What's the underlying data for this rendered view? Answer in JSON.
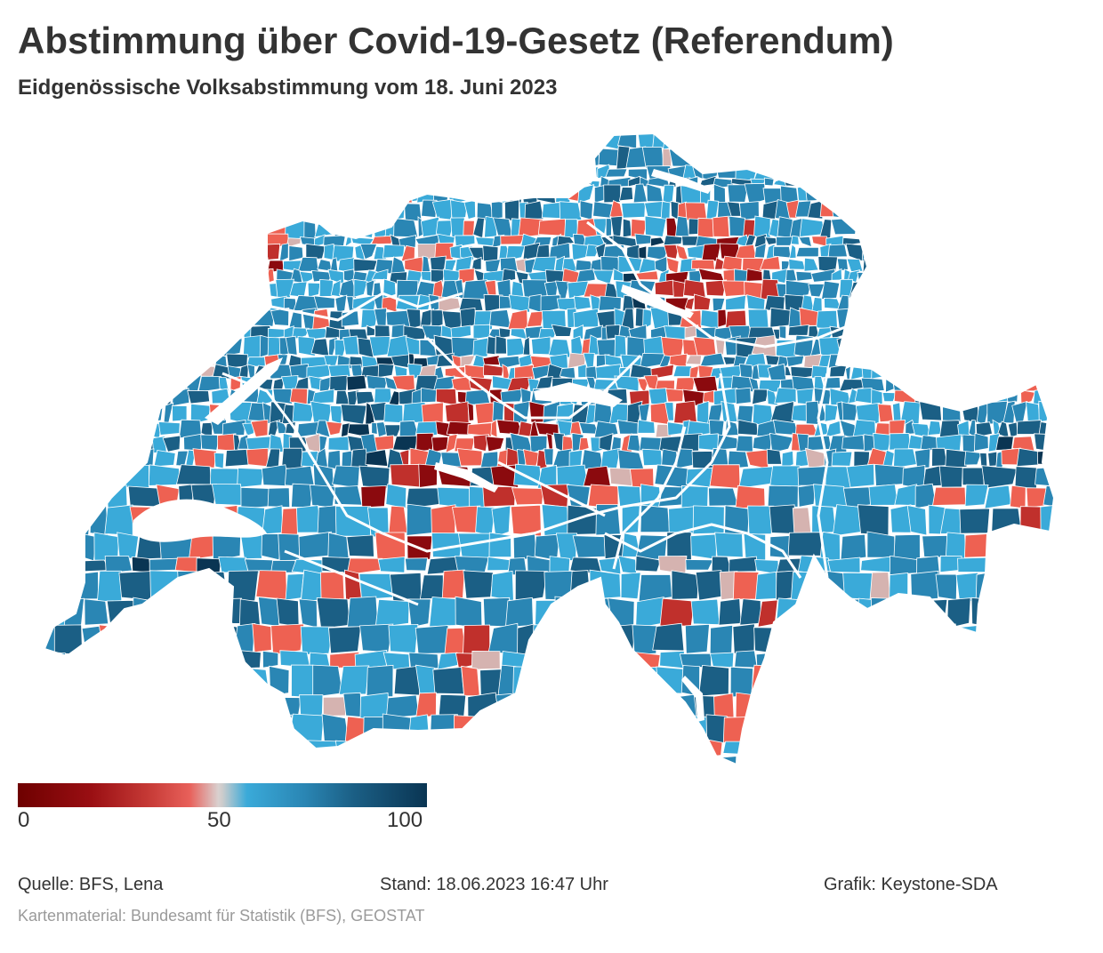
{
  "header": {
    "title": "Abstimmung über Covid-19-Gesetz (Referendum)",
    "subtitle": "Eidgenössische Volksabstimmung vom 18. Juni 2023"
  },
  "legend": {
    "min_label": "0",
    "mid_label": "50",
    "max_label": "100",
    "colors": [
      "#6e0000",
      "#9a0f13",
      "#c63a36",
      "#e8605a",
      "#d9d0cf",
      "#cccccc",
      "#3aaad9",
      "#2a86b4",
      "#1b5f85",
      "#0a3553"
    ]
  },
  "map": {
    "colors": {
      "no_strong": "#8b0a0e",
      "no_mid": "#c0302c",
      "no_light": "#ee6152",
      "neutral": "#d5b3b0",
      "yes_light": "#3aaad9",
      "yes_mid": "#2a86b4",
      "yes_strong": "#1b5f85",
      "yes_darkest": "#0a3553"
    }
  },
  "footer": {
    "source": "Quelle: BFS, Lena",
    "stand": "Stand: 18.06.2023 16:47 Uhr",
    "credit": "Grafik: Keystone-SDA",
    "map_source": "Kartenmaterial: Bundesamt für Statistik (BFS), GEOSTAT"
  }
}
